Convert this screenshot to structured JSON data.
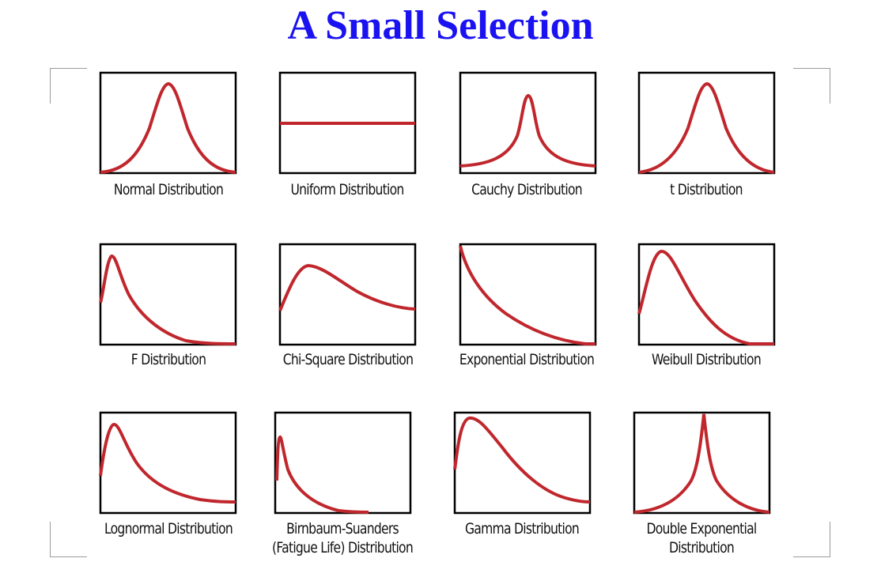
{
  "page": {
    "title": "A Small Selection",
    "title_color": "#1a12f0",
    "curve_color": "#c0272d",
    "frame_color": "#000000"
  },
  "panels": [
    {
      "label": "Normal Distribution",
      "shape": "normal"
    },
    {
      "label": "Uniform Distribution",
      "shape": "uniform"
    },
    {
      "label": "Cauchy Distribution",
      "shape": "cauchy"
    },
    {
      "label": "t Distribution",
      "shape": "t"
    },
    {
      "label": "F Distribution",
      "shape": "f"
    },
    {
      "label": "Chi-Square Distribution",
      "shape": "chi-square"
    },
    {
      "label": "Exponential Distribution",
      "shape": "exponential"
    },
    {
      "label": "Weibull Distribution",
      "shape": "weibull"
    },
    {
      "label": "Lognormal Distribution",
      "shape": "lognormal"
    },
    {
      "label": "Birnbaum-Suanders",
      "label_line2": "(Fatigue Life) Distribution",
      "shape": "birnbaum-saunders"
    },
    {
      "label": "Gamma Distribution",
      "shape": "gamma"
    },
    {
      "label": "Double Exponential",
      "label_line2": "Distribution",
      "shape": "double-exponential"
    }
  ]
}
